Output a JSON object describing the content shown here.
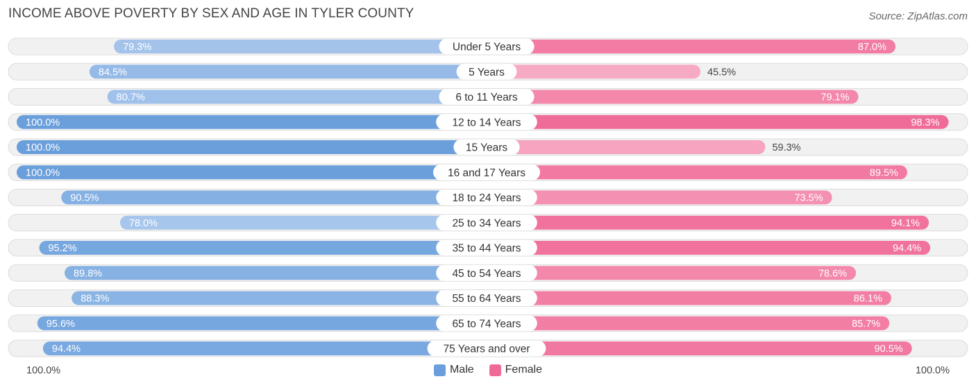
{
  "title": "INCOME ABOVE POVERTY BY SEX AND AGE IN TYLER COUNTY",
  "source": "Source: ZipAtlas.com",
  "axis": {
    "left_label": "100.0%",
    "right_label": "100.0%"
  },
  "legend": [
    {
      "label": "Male",
      "color": "#6a9fdc"
    },
    {
      "label": "Female",
      "color": "#f06a96"
    }
  ],
  "chart_data": {
    "type": "bar",
    "orientation": "horizontal-diverging",
    "categories": [
      "Under 5 Years",
      "5 Years",
      "6 to 11 Years",
      "12 to 14 Years",
      "15 Years",
      "16 and 17 Years",
      "18 to 24 Years",
      "25 to 34 Years",
      "35 to 44 Years",
      "45 to 54 Years",
      "55 to 64 Years",
      "65 to 74 Years",
      "75 Years and over"
    ],
    "series": [
      {
        "name": "Male",
        "values": [
          79.3,
          84.5,
          80.7,
          100.0,
          100.0,
          100.0,
          90.5,
          78.0,
          95.2,
          89.8,
          88.3,
          95.6,
          94.4
        ],
        "labels": [
          "79.3%",
          "84.5%",
          "80.7%",
          "100.0%",
          "100.0%",
          "100.0%",
          "90.5%",
          "78.0%",
          "95.2%",
          "89.8%",
          "88.3%",
          "95.6%",
          "94.4%"
        ]
      },
      {
        "name": "Female",
        "values": [
          87.0,
          45.5,
          79.1,
          98.3,
          59.3,
          89.5,
          73.5,
          94.1,
          94.4,
          78.6,
          86.1,
          85.7,
          90.5
        ],
        "labels": [
          "87.0%",
          "45.5%",
          "79.1%",
          "98.3%",
          "59.3%",
          "89.5%",
          "73.5%",
          "94.1%",
          "94.4%",
          "78.6%",
          "86.1%",
          "85.7%",
          "90.5%"
        ]
      }
    ],
    "xlim": [
      0,
      100
    ],
    "legend_position": "bottom-center"
  }
}
